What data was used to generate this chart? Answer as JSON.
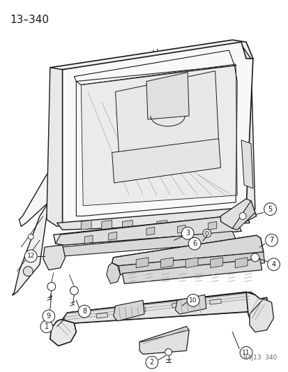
{
  "title": "13–340",
  "watermark": "94J13  340",
  "bg": "#ffffff",
  "lc": "#1a1a1a",
  "fig_w": 4.14,
  "fig_h": 5.33,
  "dpi": 100
}
